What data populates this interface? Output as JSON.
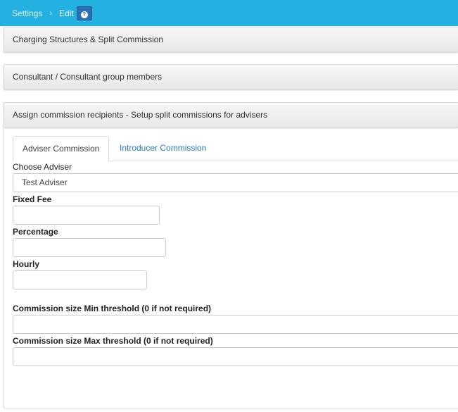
{
  "breadcrumb": {
    "items": [
      "Settings"
    ],
    "current": "Edit",
    "help_icon": "question-circle-icon"
  },
  "sections": [
    {
      "title": "Charging Structures & Split Commission"
    },
    {
      "title": "Consultant / Consultant group members"
    },
    {
      "title": "Assign commission recipients - Setup split commissions for advisers"
    }
  ],
  "tabs": [
    {
      "label": "Adviser Commission",
      "active": true
    },
    {
      "label": "Introducer Commission",
      "active": false
    }
  ],
  "form": {
    "choose_adviser": {
      "label": "Choose Adviser",
      "value": "Test Adviser"
    },
    "fixed_fee": {
      "label": "Fixed Fee",
      "value": ""
    },
    "percentage": {
      "label": "Percentage",
      "value": ""
    },
    "hourly": {
      "label": "Hourly",
      "value": ""
    },
    "min_threshold": {
      "label": "Commission size Min threshold (0 if not required)",
      "value": ""
    },
    "max_threshold": {
      "label": "Commission size Max threshold (0 if not required)",
      "value": ""
    }
  },
  "colors": {
    "topbar": "#22b1e0",
    "link": "#2a7bc1",
    "help_button": "#2c6fb5"
  }
}
